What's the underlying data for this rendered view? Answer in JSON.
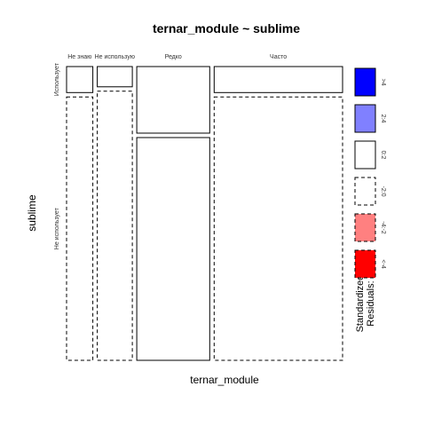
{
  "chart_data": {
    "type": "mosaic",
    "title": "ternar_module ~ sublime",
    "xlabel": "ternar_module",
    "ylabel": "sublime",
    "x_categories": [
      "Не знаю",
      "Не использую",
      "Редко",
      "Часто"
    ],
    "y_categories": [
      "Использует",
      "Не использует"
    ],
    "column_widths": [
      0.09,
      0.12,
      0.25,
      0.44
    ],
    "uses_share": [
      0.09,
      0.07,
      0.23,
      0.09
    ],
    "residual_classes": [
      [
        "0:2",
        "0:2",
        "0:2",
        "0:2"
      ],
      [
        "-2:0",
        "-2:0",
        "0:2",
        "-2:0"
      ]
    ],
    "legend": {
      "title": "Standardized\nResiduals:",
      "entries": [
        {
          "label": ">4",
          "color": "#0000ff",
          "dashed": false
        },
        {
          "label": "2:4",
          "color": "#8080ff",
          "dashed": false
        },
        {
          "label": "0:2",
          "color": "#ffffff",
          "dashed": false
        },
        {
          "label": "-2:0",
          "color": "#ffffff",
          "dashed": true
        },
        {
          "label": "-4:-2",
          "color": "#ff8080",
          "dashed": true
        },
        {
          "label": "<-4",
          "color": "#ff0000",
          "dashed": true
        }
      ]
    }
  }
}
